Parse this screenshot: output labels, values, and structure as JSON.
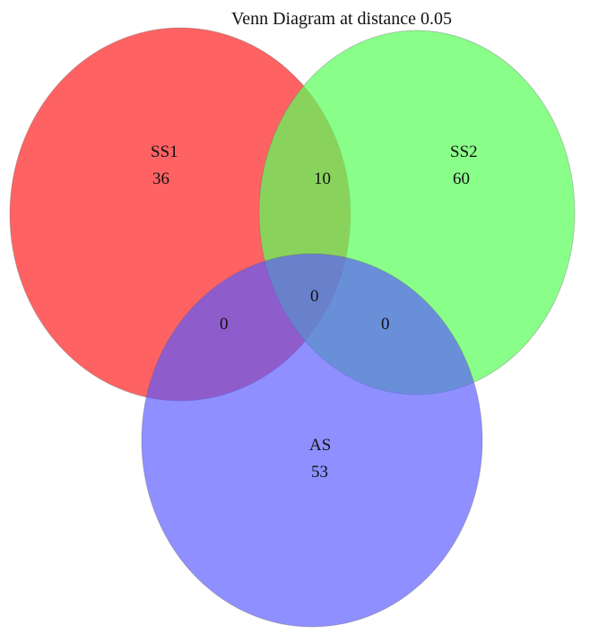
{
  "title": "Venn Diagram at distance 0.05",
  "sets": [
    {
      "id": "ss1",
      "label": "SS1",
      "count": "36",
      "color": "#ff5a5a"
    },
    {
      "id": "ss2",
      "label": "SS2",
      "count": "60",
      "color": "#5cff5c"
    },
    {
      "id": "as",
      "label": "AS",
      "count": "53",
      "color": "#5a5aff"
    }
  ],
  "intersections": {
    "ss1_ss2": "10",
    "ss1_as": "0",
    "ss2_as": "0",
    "ss1_ss2_as": "0"
  }
}
